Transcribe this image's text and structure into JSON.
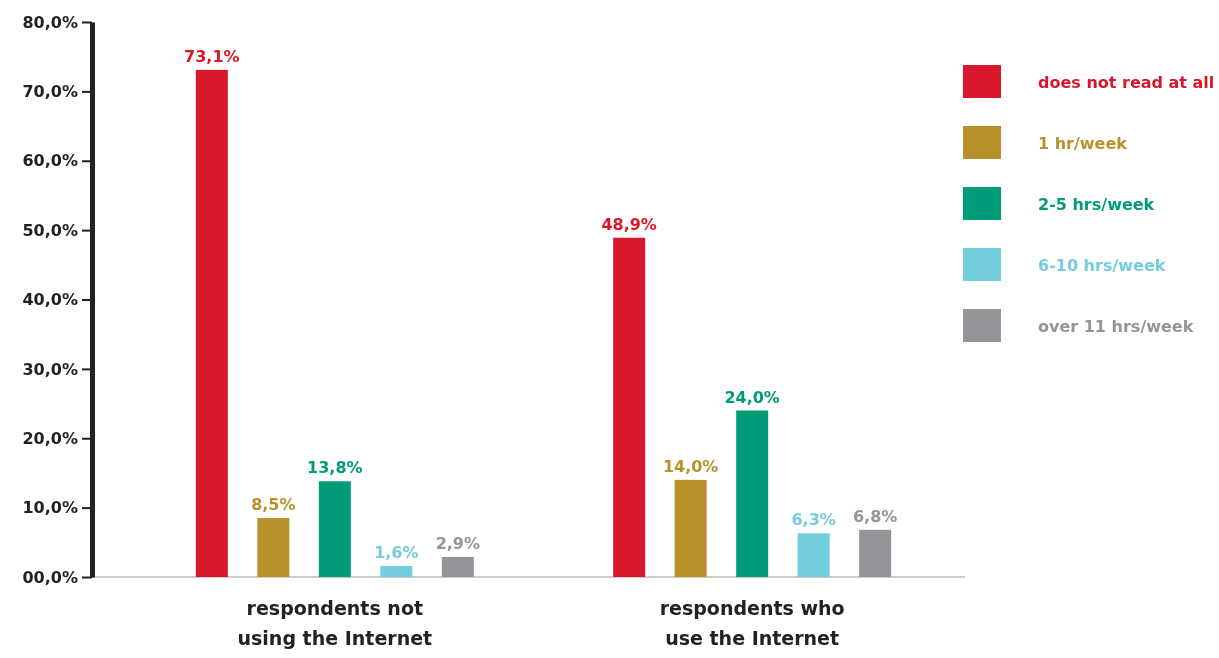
{
  "chart_data": {
    "type": "bar",
    "categories": [
      "respondents not using the Internet",
      "respondents who use the Internet"
    ],
    "series": [
      {
        "name": "does not read at all",
        "color": "#d7182a",
        "values": [
          73.1,
          48.9
        ],
        "value_labels": [
          "73,1%",
          "48,9%"
        ]
      },
      {
        "name": "1 hr/week",
        "color": "#b8912a",
        "values": [
          8.5,
          14.0
        ],
        "value_labels": [
          "8,5%",
          "14,0%"
        ]
      },
      {
        "name": "2-5 hrs/week",
        "color": "#009b77",
        "values": [
          13.8,
          24.0
        ],
        "value_labels": [
          "13,8%",
          "24,0%"
        ]
      },
      {
        "name": "6-10 hrs/week",
        "color": "#73cddd",
        "values": [
          1.6,
          6.3
        ],
        "value_labels": [
          "1,6%",
          "6,3%"
        ]
      },
      {
        "name": "over 11 hrs/week",
        "color": "#939598",
        "values": [
          2.9,
          6.8
        ],
        "value_labels": [
          "2,9%",
          "6,8%"
        ]
      }
    ],
    "ylim": [
      0,
      80
    ],
    "yticks": [
      {
        "value": 0,
        "label": "00,0%"
      },
      {
        "value": 10,
        "label": "10,0%"
      },
      {
        "value": 20,
        "label": "20,0%"
      },
      {
        "value": 30,
        "label": "30,0%"
      },
      {
        "value": 40,
        "label": "40,0%"
      },
      {
        "value": 50,
        "label": "50,0%"
      },
      {
        "value": 60,
        "label": "60,0%"
      },
      {
        "value": 70,
        "label": "70,0%"
      },
      {
        "value": 80,
        "label": "80,0%"
      }
    ],
    "grid": false,
    "legend": "right"
  }
}
